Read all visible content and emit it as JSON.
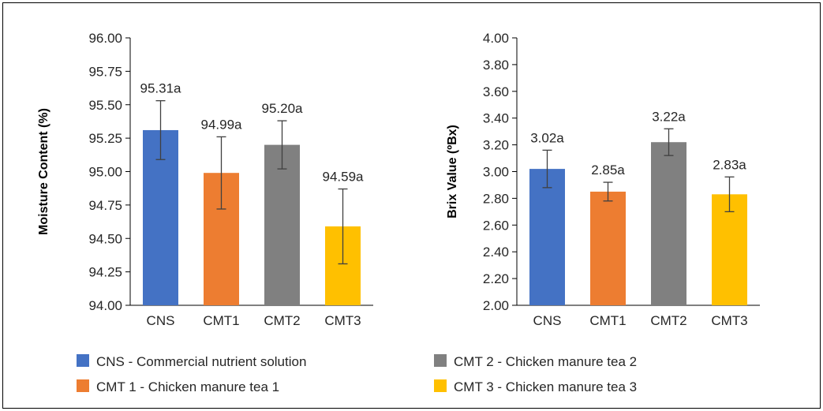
{
  "chart_data": [
    {
      "type": "bar",
      "categories": [
        "CNS",
        "CMT1",
        "CMT2",
        "CMT3"
      ],
      "values": [
        95.31,
        94.99,
        95.2,
        94.59
      ],
      "errors": [
        0.22,
        0.27,
        0.18,
        0.28
      ],
      "data_labels": [
        "95.31a",
        "94.99a",
        "95.20a",
        "94.59a"
      ],
      "ylabel": "Moisture Content (%)",
      "ylim": [
        94.0,
        96.0
      ],
      "ticks": [
        "94.00",
        "94.25",
        "94.50",
        "94.75",
        "95.00",
        "95.25",
        "95.50",
        "95.75",
        "96.00"
      ],
      "colors": [
        "#4472C4",
        "#ED7D31",
        "#808080",
        "#FFC000"
      ]
    },
    {
      "type": "bar",
      "categories": [
        "CNS",
        "CMT1",
        "CMT2",
        "CMT3"
      ],
      "values": [
        3.02,
        2.85,
        3.22,
        2.83
      ],
      "errors": [
        0.14,
        0.07,
        0.1,
        0.13
      ],
      "data_labels": [
        "3.02a",
        "2.85a",
        "3.22a",
        "2.83a"
      ],
      "ylabel": "Brix Value (ºBx)",
      "ylim": [
        2.0,
        4.0
      ],
      "ticks": [
        "2.00",
        "2.20",
        "2.40",
        "2.60",
        "2.80",
        "3.00",
        "3.20",
        "3.40",
        "3.60",
        "3.80",
        "4.00"
      ],
      "colors": [
        "#4472C4",
        "#ED7D31",
        "#808080",
        "#FFC000"
      ]
    }
  ],
  "legend": [
    {
      "label": "CNS - Commercial nutrient solution",
      "color": "#4472C4"
    },
    {
      "label": "CMT 2 - Chicken manure tea 2",
      "color": "#808080"
    },
    {
      "label": "CMT 1 - Chicken manure tea 1",
      "color": "#ED7D31"
    },
    {
      "label": "CMT 3 - Chicken manure tea 3",
      "color": "#FFC000"
    }
  ]
}
